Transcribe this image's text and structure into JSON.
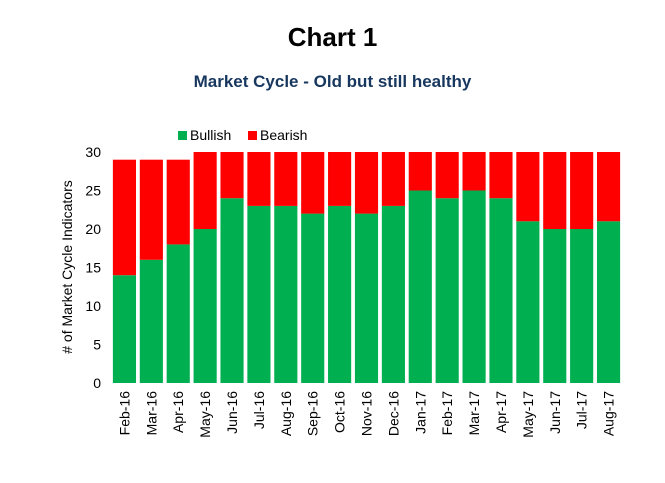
{
  "chart_data": {
    "type": "bar",
    "stacked": true,
    "title": "Chart 1",
    "subtitle": "Market Cycle - Old but still healthy",
    "ylabel": "# of Market Cycle Indicators",
    "xlabel": "",
    "ylim": [
      0,
      30
    ],
    "yticks": [
      0,
      5,
      10,
      15,
      20,
      25,
      30
    ],
    "grid": false,
    "legend_position": "top-left",
    "categories": [
      "Feb-16",
      "Mar-16",
      "Apr-16",
      "May-16",
      "Jun-16",
      "Jul-16",
      "Aug-16",
      "Sep-16",
      "Oct-16",
      "Nov-16",
      "Dec-16",
      "Jan-17",
      "Feb-17",
      "Mar-17",
      "Apr-17",
      "May-17",
      "Jun-17",
      "Jul-17",
      "Aug-17"
    ],
    "series": [
      {
        "name": "Bullish",
        "color": "#00B050",
        "values": [
          14,
          16,
          18,
          20,
          24,
          23,
          23,
          22,
          23,
          22,
          23,
          25,
          24,
          25,
          24,
          21,
          20,
          20,
          21
        ]
      },
      {
        "name": "Bearish",
        "color": "#FF0000",
        "values": [
          15,
          13,
          11,
          10,
          6,
          7,
          7,
          8,
          7,
          8,
          7,
          5,
          6,
          5,
          6,
          9,
          10,
          10,
          9
        ]
      }
    ]
  }
}
